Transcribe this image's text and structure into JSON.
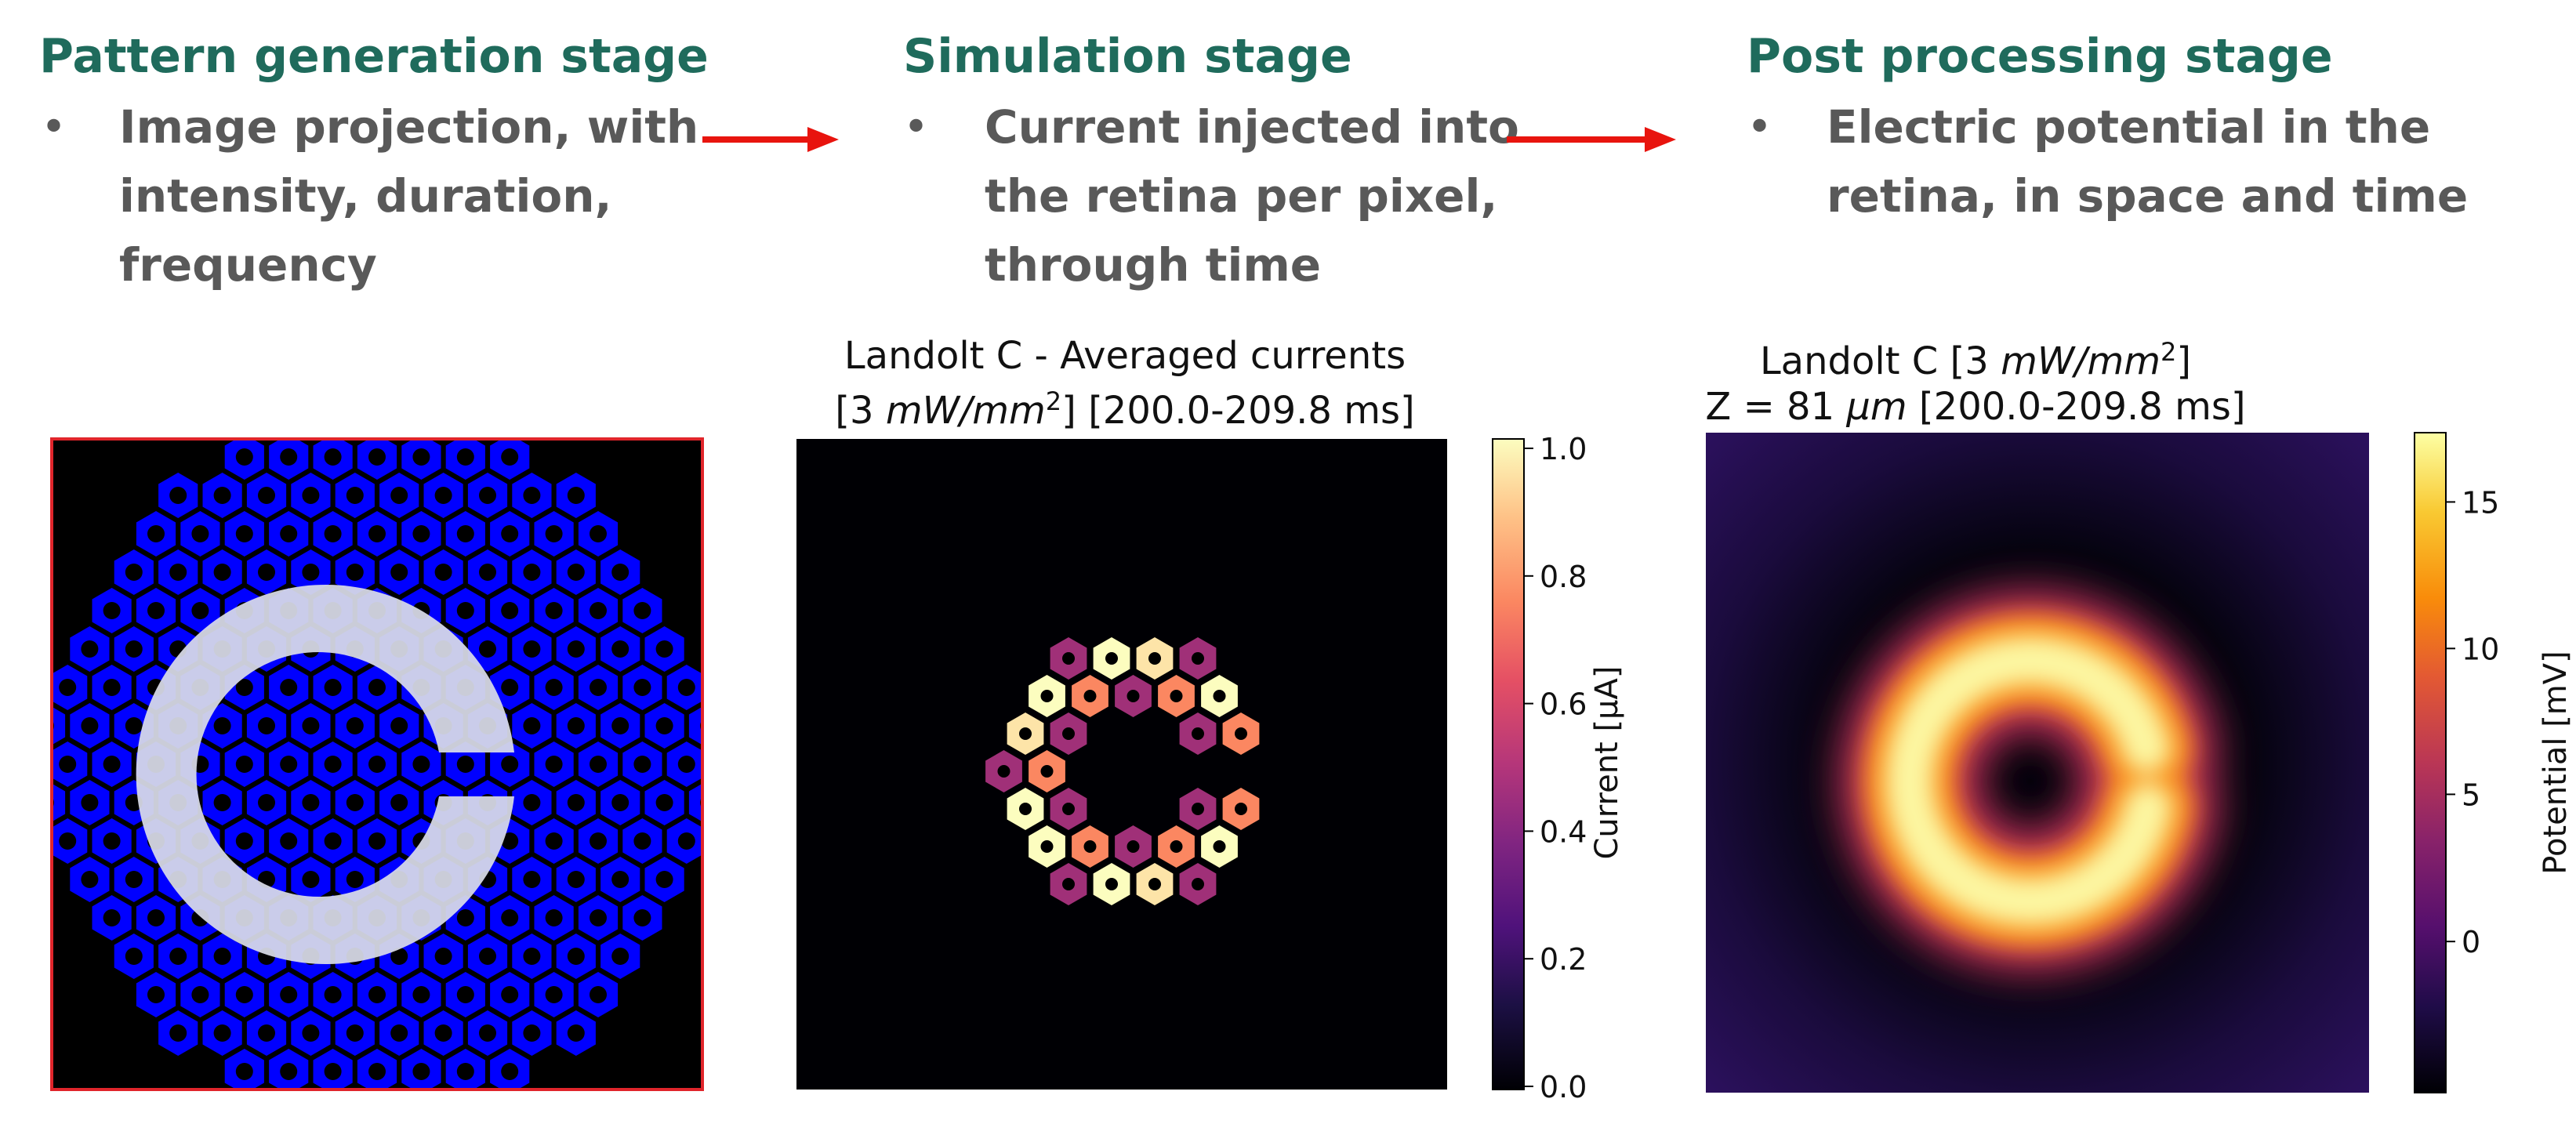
{
  "stages": [
    {
      "title": "Pattern generation stage",
      "bullet_symbol": "•",
      "lines": [
        "Image projection, with",
        "intensity, duration,",
        "frequency"
      ]
    },
    {
      "title": "Simulation stage",
      "bullet_symbol": "•",
      "lines": [
        "Current injected into",
        "the retina per pixel,",
        "through time"
      ]
    },
    {
      "title": "Post processing stage",
      "bullet_symbol": "•",
      "lines": [
        "Electric potential in the",
        "retina, in space and time"
      ]
    }
  ],
  "colors": {
    "stage_title": "#1f6b5c",
    "bullet_text": "#595959",
    "arrow": "#e8140e",
    "pixel_fill": "#0000ff",
    "projected_c": "#d9dce8",
    "panel_border": "#e0252b"
  },
  "pattern_panel": {
    "letter": "C",
    "background": "black",
    "pixel_shape": "hexagon"
  },
  "current_plot": {
    "title_line1": "Landolt C - Averaged currents",
    "title_line2_prefix": "[3 ",
    "title_line2_unit": "mW/mm",
    "title_line2_exp": "2",
    "title_line2_suffix": "] [200.0-209.8 ms]",
    "colorbar_label": "Current [μA]",
    "colorbar_ticks": [
      "1.0",
      "0.8",
      "0.6",
      "0.4",
      "0.2",
      "0.0"
    ],
    "colormap": "magma"
  },
  "potential_plot": {
    "title_line1_prefix": "Landolt C [3 ",
    "title_line1_unit": "mW/mm",
    "title_line1_exp": "2",
    "title_line1_suffix": "]",
    "title_line2_prefix": "Z = 81 ",
    "title_line2_unit": "μm",
    "title_line2_suffix": " [200.0-209.8 ms]",
    "colorbar_label": "Potential [mV]",
    "colorbar_ticks": [
      "15",
      "10",
      "5",
      "0"
    ],
    "colormap": "inferno"
  },
  "chart_data": [
    {
      "type": "heatmap",
      "title": "Landolt C - Averaged currents [3 mW/mm2] [200.0-209.8 ms]",
      "colorbar_label": "Current [μA]",
      "clim": [
        0.0,
        1.0
      ],
      "pixel_currents": [
        {
          "row": 0,
          "col": -1.0,
          "value": 0.45
        },
        {
          "row": 0,
          "col": 0.0,
          "value": 1.0
        },
        {
          "row": 0,
          "col": 1.0,
          "value": 0.95
        },
        {
          "row": 0,
          "col": 2.0,
          "value": 0.45
        },
        {
          "row": 1,
          "col": -1.5,
          "value": 1.0
        },
        {
          "row": 1,
          "col": -0.5,
          "value": 0.75
        },
        {
          "row": 1,
          "col": 0.5,
          "value": 0.45
        },
        {
          "row": 1,
          "col": 1.5,
          "value": 0.75
        },
        {
          "row": 1,
          "col": 2.5,
          "value": 1.0
        },
        {
          "row": 2,
          "col": -2.0,
          "value": 0.95
        },
        {
          "row": 2,
          "col": -1.0,
          "value": 0.45
        },
        {
          "row": 2,
          "col": 2.0,
          "value": 0.45
        },
        {
          "row": 2,
          "col": 3.0,
          "value": 0.75
        },
        {
          "row": 3,
          "col": -2.5,
          "value": 0.45
        },
        {
          "row": 3,
          "col": -1.5,
          "value": 0.75
        },
        {
          "row": 4,
          "col": -2.0,
          "value": 1.0
        },
        {
          "row": 4,
          "col": -1.0,
          "value": 0.45
        },
        {
          "row": 4,
          "col": 2.0,
          "value": 0.45
        },
        {
          "row": 4,
          "col": 3.0,
          "value": 0.75
        },
        {
          "row": 5,
          "col": -1.5,
          "value": 1.0
        },
        {
          "row": 5,
          "col": -0.5,
          "value": 0.75
        },
        {
          "row": 5,
          "col": 0.5,
          "value": 0.45
        },
        {
          "row": 5,
          "col": 1.5,
          "value": 0.75
        },
        {
          "row": 5,
          "col": 2.5,
          "value": 1.0
        },
        {
          "row": 6,
          "col": -1.0,
          "value": 0.45
        },
        {
          "row": 6,
          "col": 0.0,
          "value": 1.0
        },
        {
          "row": 6,
          "col": 1.0,
          "value": 0.95
        },
        {
          "row": 6,
          "col": 2.0,
          "value": 0.45
        }
      ]
    },
    {
      "type": "heatmap",
      "title": "Landolt C [3 mW/mm2] Z = 81 μm [200.0-209.8 ms]",
      "colorbar_label": "Potential [mV]",
      "clim": [
        -3,
        19.5
      ],
      "peak_value": 19.5,
      "background_value": -1
    }
  ]
}
